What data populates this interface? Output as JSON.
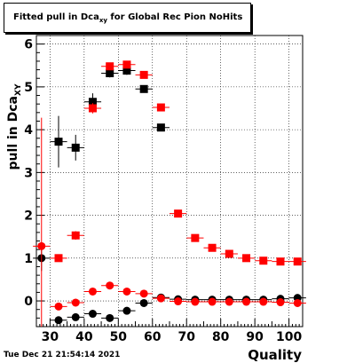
{
  "title_prefix": "Fitted pull in Dca",
  "title_sub": "xy",
  "title_suffix": " for Global Rec Pion NoHits",
  "footer": "Tue Dec 21 21:54:14 2021",
  "chart_data": {
    "type": "scatter",
    "xlabel": "Quality",
    "ylabel": "pull in Dca",
    "ylabel_sub": "XY",
    "xlim": [
      26,
      104
    ],
    "ylim": [
      -0.6,
      6.2
    ],
    "xticks": [
      30,
      40,
      50,
      60,
      70,
      80,
      90,
      100
    ],
    "yticks": [
      0,
      1,
      2,
      3,
      4,
      5,
      6
    ],
    "grid": true,
    "x": [
      27.5,
      32.5,
      37.5,
      42.5,
      47.5,
      52.5,
      57.5,
      62.5,
      67.5,
      72.5,
      77.5,
      82.5,
      87.5,
      92.5,
      97.5,
      102.5
    ],
    "series": [
      {
        "marker": "square",
        "color": "#000000",
        "values": [
          null,
          3.72,
          3.58,
          4.65,
          5.32,
          5.38,
          4.95,
          4.05,
          null,
          null,
          null,
          null,
          null,
          null,
          null,
          null
        ],
        "errors": [
          null,
          0.6,
          0.3,
          0.2,
          0.1,
          0.1,
          0.05,
          0.05,
          null,
          null,
          null,
          null,
          null,
          null,
          null,
          null
        ]
      },
      {
        "marker": "square",
        "color": "#ff0000",
        "values": [
          null,
          1.0,
          1.53,
          4.5,
          5.48,
          5.52,
          5.28,
          4.52,
          2.04,
          1.47,
          1.24,
          1.1,
          1.0,
          0.94,
          0.92,
          0.92
        ],
        "errors": [
          null,
          0.05,
          0.1,
          0.12,
          0.08,
          0.05,
          0.05,
          0.05,
          0.03,
          0.03,
          0.03,
          0.03,
          0.02,
          0.02,
          0.02,
          0.02
        ]
      },
      {
        "marker": "circle",
        "color": "#000000",
        "values": [
          1.0,
          -0.45,
          -0.38,
          -0.3,
          -0.4,
          -0.23,
          -0.05,
          0.08,
          0.04,
          0.03,
          0.03,
          0.03,
          0.03,
          0.03,
          0.05,
          0.07
        ],
        "errors": [
          0.3,
          0.08,
          0.06,
          0.05,
          0.04,
          0.03,
          0.03,
          0.02,
          0.02,
          0.02,
          0.02,
          0.02,
          0.02,
          0.02,
          0.02,
          0.02
        ]
      },
      {
        "marker": "circle",
        "color": "#ff0000",
        "values": [
          1.28,
          -0.13,
          -0.04,
          0.22,
          0.36,
          0.22,
          0.17,
          0.06,
          -0.01,
          -0.02,
          -0.02,
          -0.02,
          -0.02,
          -0.02,
          -0.03,
          -0.05
        ],
        "errors": [
          3.0,
          0.06,
          0.05,
          0.05,
          0.04,
          0.03,
          0.03,
          0.02,
          0.02,
          0.02,
          0.02,
          0.02,
          0.02,
          0.02,
          0.02,
          0.02
        ]
      }
    ]
  }
}
